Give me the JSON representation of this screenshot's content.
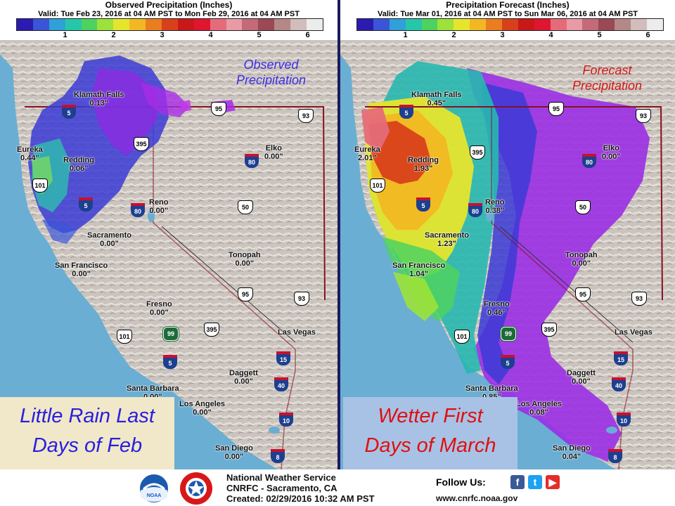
{
  "colorbar": {
    "colors": [
      "#2b1bb0",
      "#3a55d8",
      "#2fa0d8",
      "#25c7a8",
      "#4ed25f",
      "#9ce23a",
      "#e5e52d",
      "#f1b823",
      "#ea7d1f",
      "#d8401b",
      "#c81818",
      "#e01530",
      "#e66b7a",
      "#e89aa5",
      "#c56a78",
      "#9a4955",
      "#b48886",
      "#d2bcbc",
      "#ececec"
    ],
    "ticks": [
      "1",
      "2",
      "3",
      "4",
      "5",
      "6"
    ]
  },
  "left_panel": {
    "title": "Observed Precipitation (Inches)",
    "valid": "Valid: Tue Feb 23, 2016 at 04 AM PST to Mon Feb 29, 2016 at 04 AM PST",
    "overlay_title_line1": "Observed",
    "overlay_title_line2": "Precipitation",
    "overlay_color": "#3b2ee8",
    "callout_line1": "Little Rain Last",
    "callout_line2": "Days of Feb",
    "callout_text_color": "#2a1ee0",
    "callout_bg": "#f0e8c8",
    "cities": [
      {
        "name": "Klamath Falls",
        "value": "0.13\""
      },
      {
        "name": "Eureka",
        "value": "0.44\""
      },
      {
        "name": "Redding",
        "value": "0.06\""
      },
      {
        "name": "Elko",
        "value": "0.00\""
      },
      {
        "name": "Reno",
        "value": "0.00\""
      },
      {
        "name": "Sacramento",
        "value": "0.00\""
      },
      {
        "name": "San Francisco",
        "value": "0.00\""
      },
      {
        "name": "Tonopah",
        "value": "0.00\""
      },
      {
        "name": "Fresno",
        "value": "0.00\""
      },
      {
        "name": "Las Vegas",
        "value": ""
      },
      {
        "name": "Daggett",
        "value": "0.00\""
      },
      {
        "name": "Santa Barbara",
        "value": "0.00\""
      },
      {
        "name": "Los Angeles",
        "value": "0.00\""
      },
      {
        "name": "San Diego",
        "value": "0.00\""
      }
    ]
  },
  "right_panel": {
    "title": "Precipitation Forecast (Inches)",
    "valid": "Valid: Tue Mar 01, 2016 at 04 AM PST to Sun Mar 06, 2016 at 04 AM PST",
    "overlay_title_line1": "Forecast",
    "overlay_title_line2": "Precipitation",
    "overlay_color": "#d81818",
    "callout_line1": "Wetter First",
    "callout_line2": "Days of March",
    "callout_text_color": "#e01010",
    "callout_bg": "#a8c2e6",
    "cities": [
      {
        "name": "Klamath Falls",
        "value": "0.45\""
      },
      {
        "name": "Eureka",
        "value": "2.01\""
      },
      {
        "name": "Redding",
        "value": "1.93\""
      },
      {
        "name": "Elko",
        "value": "0.00\""
      },
      {
        "name": "Reno",
        "value": "0.38\""
      },
      {
        "name": "Sacramento",
        "value": "1.23\""
      },
      {
        "name": "San Francisco",
        "value": "1.04\""
      },
      {
        "name": "Tonopah",
        "value": "0.00\""
      },
      {
        "name": "Fresno",
        "value": "0.46\""
      },
      {
        "name": "Las Vegas",
        "value": ""
      },
      {
        "name": "Daggett",
        "value": "0.00\""
      },
      {
        "name": "Santa Barbara",
        "value": "0.85\""
      },
      {
        "name": "Los Angeles",
        "value": "0.08\""
      },
      {
        "name": "San Diego",
        "value": "0.04\""
      }
    ]
  },
  "highways": {
    "interstate": [
      "5",
      "80",
      "15",
      "40",
      "10",
      "8"
    ],
    "us": [
      "95",
      "93",
      "395",
      "101",
      "50"
    ],
    "state": [
      "99"
    ]
  },
  "footer": {
    "line1": "National Weather Service",
    "line2": "CNRFC - Sacramento, CA",
    "line3": "Created: 02/29/2016 10:32 AM PST",
    "follow": "Follow Us:",
    "url": "www.cnrfc.noaa.gov",
    "noaa_logo_text": "NOAA",
    "nws_seal_text": "NATIONAL WEATHER SERVICE",
    "social_icons": [
      "facebook-icon",
      "twitter-icon",
      "youtube-icon"
    ]
  }
}
